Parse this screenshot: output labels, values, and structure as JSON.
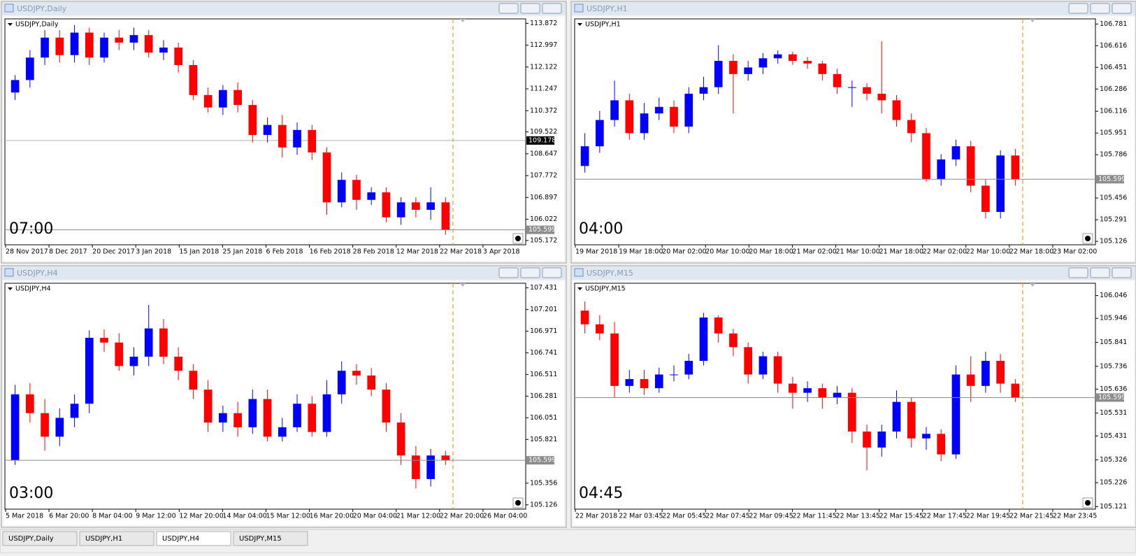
{
  "bull_color": "#0000ff",
  "bear_color": "#ff0000",
  "windows": [
    {
      "title": "USDJPY,Daily",
      "label": "USDJPY,Daily",
      "time_label": "07:00",
      "ylim": [
        105.0,
        114.05
      ],
      "yticks": [
        113.872,
        112.997,
        112.122,
        111.247,
        110.372,
        109.522,
        108.647,
        107.772,
        106.897,
        106.022,
        105.172
      ],
      "current_price": 105.599,
      "marker_price": 109.178,
      "x_labels": [
        "28 Nov 2017",
        "8 Dec 2017",
        "20 Dec 2017",
        "3 Jan 2018",
        "15 Jan 2018",
        "25 Jan 2018",
        "6 Feb 2018",
        "16 Feb 2018",
        "28 Feb 2018",
        "12 Mar 2018",
        "22 Mar 2018",
        "3 Apr 2018"
      ],
      "open": [
        111.1,
        111.6,
        112.5,
        113.3,
        112.6,
        113.5,
        112.5,
        113.3,
        113.1,
        113.4,
        112.7,
        112.9,
        112.2,
        111.0,
        110.5,
        111.2,
        110.6,
        109.4,
        109.8,
        108.9,
        109.6,
        108.7,
        106.7,
        107.6,
        106.8,
        107.1,
        106.1,
        106.7,
        106.4,
        106.7
      ],
      "high": [
        111.8,
        112.8,
        113.6,
        113.6,
        113.8,
        113.7,
        113.5,
        113.6,
        113.7,
        113.6,
        113.2,
        113.1,
        112.4,
        111.3,
        111.4,
        111.5,
        110.8,
        110.1,
        110.2,
        109.9,
        109.8,
        108.9,
        107.9,
        107.8,
        107.3,
        107.3,
        106.9,
        106.9,
        107.3,
        106.9
      ],
      "low": [
        110.8,
        111.3,
        112.2,
        112.3,
        112.3,
        112.2,
        112.3,
        112.8,
        112.8,
        112.5,
        112.4,
        111.9,
        110.8,
        110.3,
        110.2,
        110.3,
        109.1,
        109.1,
        108.5,
        108.6,
        108.4,
        106.2,
        106.5,
        106.4,
        106.6,
        105.9,
        105.8,
        106.1,
        106.0,
        105.4
      ],
      "close": [
        111.6,
        112.5,
        113.3,
        112.6,
        113.5,
        112.5,
        113.3,
        113.1,
        113.4,
        112.7,
        112.9,
        112.2,
        111.0,
        110.5,
        111.2,
        110.6,
        109.4,
        109.8,
        108.9,
        109.6,
        108.7,
        106.7,
        107.6,
        106.8,
        107.1,
        106.1,
        106.7,
        106.4,
        106.7,
        105.6
      ]
    },
    {
      "title": "USDJPY,H1",
      "label": "USDJPY,H1",
      "time_label": "04:00",
      "ylim": [
        105.1,
        106.82
      ],
      "yticks": [
        106.781,
        106.616,
        106.451,
        106.286,
        106.116,
        105.951,
        105.786,
        105.456,
        105.291,
        105.126
      ],
      "current_price": 105.599,
      "x_labels": [
        "19 Mar 2018",
        "19 Mar 18:00",
        "20 Mar 02:00",
        "20 Mar 10:00",
        "20 Mar 18:00",
        "21 Mar 02:00",
        "21 Mar 10:00",
        "21 Mar 18:00",
        "22 Mar 02:00",
        "22 Mar 10:00",
        "22 Mar 18:00",
        "23 Mar 02:00"
      ],
      "open": [
        105.7,
        105.85,
        106.05,
        106.2,
        105.95,
        106.1,
        106.15,
        106.0,
        106.25,
        106.3,
        106.5,
        106.4,
        106.45,
        106.52,
        106.55,
        106.5,
        106.48,
        106.4,
        106.3,
        106.3,
        106.25,
        106.2,
        106.05,
        105.95,
        105.6,
        105.75,
        105.85,
        105.55,
        105.35,
        105.78
      ],
      "high": [
        105.95,
        106.12,
        106.35,
        106.25,
        106.18,
        106.22,
        106.2,
        106.3,
        106.38,
        106.62,
        106.55,
        106.5,
        106.56,
        106.58,
        106.57,
        106.53,
        106.5,
        106.44,
        106.35,
        106.33,
        106.65,
        106.24,
        106.1,
        105.99,
        105.79,
        105.9,
        105.89,
        105.6,
        105.82,
        105.83
      ],
      "low": [
        105.65,
        105.8,
        106.0,
        105.9,
        105.9,
        106.05,
        105.95,
        105.95,
        106.2,
        106.25,
        106.1,
        106.35,
        106.4,
        106.48,
        106.47,
        106.44,
        106.35,
        106.25,
        106.15,
        106.2,
        106.1,
        106.0,
        105.88,
        105.58,
        105.55,
        105.7,
        105.5,
        105.3,
        105.3,
        105.55
      ],
      "close": [
        105.85,
        106.05,
        106.2,
        105.95,
        106.1,
        106.15,
        106.0,
        106.25,
        106.3,
        106.5,
        106.4,
        106.45,
        106.52,
        106.55,
        106.5,
        106.48,
        106.4,
        106.3,
        106.3,
        106.25,
        106.2,
        106.05,
        105.95,
        105.6,
        105.75,
        105.85,
        105.55,
        105.35,
        105.78,
        105.6
      ]
    },
    {
      "title": "USDJPY,H4",
      "label": "USDJPY,H4",
      "time_label": "03:00",
      "ylim": [
        105.08,
        107.48
      ],
      "yticks": [
        107.431,
        107.201,
        106.971,
        106.741,
        106.511,
        106.281,
        106.051,
        105.821,
        105.356,
        105.126
      ],
      "current_price": 105.599,
      "x_labels": [
        "5 Mar 2018",
        "6 Mar 20:00",
        "8 Mar 04:00",
        "9 Mar 12:00",
        "12 Mar 20:00",
        "14 Mar 04:00",
        "15 Mar 12:00",
        "16 Mar 20:00",
        "20 Mar 04:00",
        "21 Mar 12:00",
        "22 Mar 20:00",
        "26 Mar 04:00"
      ],
      "open": [
        105.6,
        106.3,
        106.1,
        105.85,
        106.05,
        106.2,
        106.9,
        106.85,
        106.6,
        106.7,
        107.0,
        106.7,
        106.55,
        106.35,
        106.0,
        106.1,
        105.95,
        106.25,
        105.85,
        105.95,
        106.2,
        105.9,
        106.3,
        106.55,
        106.5,
        106.35,
        106.0,
        105.65,
        105.4,
        105.65
      ],
      "high": [
        106.4,
        106.42,
        106.25,
        106.15,
        106.3,
        106.98,
        106.99,
        106.95,
        106.8,
        107.25,
        107.1,
        106.8,
        106.62,
        106.45,
        106.18,
        106.22,
        106.35,
        106.35,
        106.05,
        106.3,
        106.28,
        106.45,
        106.65,
        106.62,
        106.58,
        106.42,
        106.1,
        105.75,
        105.72,
        105.7
      ],
      "low": [
        105.55,
        106.0,
        105.7,
        105.75,
        105.95,
        106.1,
        106.75,
        106.55,
        106.5,
        106.6,
        106.62,
        106.45,
        106.25,
        105.9,
        105.9,
        105.85,
        105.88,
        105.8,
        105.8,
        105.9,
        105.85,
        105.85,
        106.2,
        106.4,
        106.28,
        105.9,
        105.55,
        105.3,
        105.32,
        105.55
      ],
      "close": [
        106.3,
        106.1,
        105.85,
        106.05,
        106.2,
        106.9,
        106.85,
        106.6,
        106.7,
        107.0,
        106.7,
        106.55,
        106.35,
        106.0,
        106.1,
        105.95,
        106.25,
        105.85,
        105.95,
        106.2,
        105.9,
        106.3,
        106.55,
        106.5,
        106.35,
        106.0,
        105.65,
        105.4,
        105.65,
        105.6
      ]
    },
    {
      "title": "USDJPY,M15",
      "label": "USDJPY,M15",
      "time_label": "04:45",
      "ylim": [
        105.11,
        106.1
      ],
      "yticks": [
        106.046,
        105.946,
        105.841,
        105.736,
        105.636,
        105.531,
        105.431,
        105.326,
        105.226,
        105.121
      ],
      "current_price": 105.599,
      "x_labels": [
        "22 Mar 2018",
        "22 Mar 03:45",
        "22 Mar 05:45",
        "22 Mar 07:45",
        "22 Mar 09:45",
        "22 Mar 11:45",
        "22 Mar 13:45",
        "22 Mar 15:45",
        "22 Mar 17:45",
        "22 Mar 19:45",
        "22 Mar 21:45",
        "22 Mar 23:45"
      ],
      "open": [
        105.98,
        105.92,
        105.88,
        105.65,
        105.68,
        105.64,
        105.7,
        105.7,
        105.76,
        105.95,
        105.88,
        105.82,
        105.7,
        105.78,
        105.66,
        105.62,
        105.64,
        105.6,
        105.62,
        105.45,
        105.38,
        105.45,
        105.58,
        105.42,
        105.44,
        105.35,
        105.7,
        105.65,
        105.76,
        105.66
      ],
      "high": [
        106.02,
        105.96,
        105.93,
        105.72,
        105.72,
        105.73,
        105.74,
        105.79,
        105.97,
        105.96,
        105.9,
        105.84,
        105.8,
        105.8,
        105.69,
        105.67,
        105.66,
        105.65,
        105.64,
        105.48,
        105.48,
        105.63,
        105.6,
        105.47,
        105.46,
        105.74,
        105.78,
        105.8,
        105.79,
        105.68
      ],
      "low": [
        105.88,
        105.85,
        105.6,
        105.62,
        105.61,
        105.62,
        105.67,
        105.68,
        105.74,
        105.84,
        105.78,
        105.66,
        105.68,
        105.62,
        105.55,
        105.58,
        105.55,
        105.57,
        105.4,
        105.28,
        105.34,
        105.42,
        105.38,
        105.37,
        105.32,
        105.33,
        105.58,
        105.62,
        105.62,
        105.58
      ],
      "close": [
        105.92,
        105.88,
        105.65,
        105.68,
        105.64,
        105.7,
        105.7,
        105.76,
        105.95,
        105.88,
        105.82,
        105.7,
        105.78,
        105.66,
        105.62,
        105.64,
        105.6,
        105.62,
        105.45,
        105.38,
        105.45,
        105.58,
        105.42,
        105.44,
        105.35,
        105.7,
        105.65,
        105.76,
        105.66,
        105.6
      ]
    }
  ],
  "tabs": [
    "USDJPY,Daily",
    "USDJPY,H1",
    "USDJPY,H4",
    "USDJPY,M15"
  ]
}
